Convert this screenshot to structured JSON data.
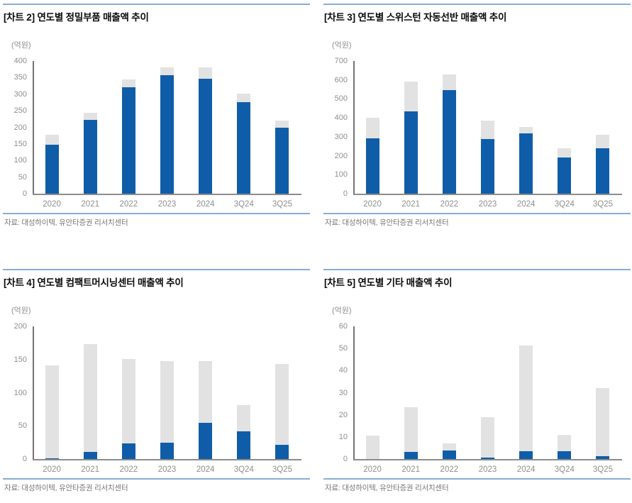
{
  "colors": {
    "bar_blue": "#0f5da8",
    "bar_gray": "#e2e2e2",
    "accent_rule": "#86aed7",
    "axis_line": "#737373",
    "tick_label": "#8e8e8e"
  },
  "chart_data": [
    {
      "id": "chart-2",
      "type": "bar",
      "stacked": true,
      "title": "[차트 2] 연도별 정밀부품 매출액 추이",
      "unit": "(억원)",
      "source": "자료: 대성하이텍, 유안타증권 리서치센터",
      "categories": [
        "2020",
        "2021",
        "2022",
        "2023",
        "2024",
        "3Q24",
        "3Q25"
      ],
      "series": [
        {
          "name": "blue-segment",
          "color": "#0f5da8",
          "values": [
            148,
            223,
            320,
            357,
            347,
            275,
            198
          ]
        },
        {
          "name": "gray-segment",
          "color": "#e2e2e2",
          "values": [
            29,
            21,
            24,
            23,
            33,
            27,
            23
          ]
        }
      ],
      "totals": [
        177,
        244,
        344,
        380,
        380,
        302,
        221
      ],
      "ylim": [
        0,
        400
      ],
      "ytick_step": 50,
      "grid": false,
      "legend": "none"
    },
    {
      "id": "chart-3",
      "type": "bar",
      "stacked": true,
      "title": "[차트 3] 연도별 스위스턴 자동선반 매출액 추이",
      "unit": "(억원)",
      "source": "자료: 대성하이텍, 유안타증권 리서치센터",
      "categories": [
        "2020",
        "2021",
        "2022",
        "2023",
        "2024",
        "3Q24",
        "3Q25"
      ],
      "series": [
        {
          "name": "blue-segment",
          "color": "#0f5da8",
          "values": [
            292,
            433,
            546,
            287,
            320,
            191,
            239
          ]
        },
        {
          "name": "gray-segment",
          "color": "#e2e2e2",
          "values": [
            108,
            157,
            82,
            97,
            32,
            49,
            70
          ]
        }
      ],
      "totals": [
        400,
        590,
        628,
        384,
        352,
        240,
        309
      ],
      "ylim": [
        0,
        700
      ],
      "ytick_step": 100,
      "grid": false,
      "legend": "none"
    },
    {
      "id": "chart-4",
      "type": "bar",
      "stacked": true,
      "title": "[차트 4] 연도별 컴팩트머시닝센터 매출액 추이",
      "unit": "(억원)",
      "source": "자료: 대성하이텍, 유안타증권 리서치센터",
      "categories": [
        "2020",
        "2021",
        "2022",
        "2023",
        "2024",
        "3Q24",
        "3Q25"
      ],
      "series": [
        {
          "name": "blue-segment",
          "color": "#0f5da8",
          "values": [
            1,
            11,
            24,
            25,
            55,
            42,
            21
          ]
        },
        {
          "name": "gray-segment",
          "color": "#e2e2e2",
          "values": [
            140,
            162,
            127,
            123,
            93,
            39,
            122
          ]
        }
      ],
      "totals": [
        141,
        173,
        151,
        148,
        148,
        81,
        143
      ],
      "ylim": [
        0,
        200
      ],
      "ytick_step": 50,
      "grid": false,
      "legend": "none"
    },
    {
      "id": "chart-5",
      "type": "bar",
      "stacked": true,
      "title": "[차트 5] 연도별 기타 매출액 추이",
      "unit": "(억원)",
      "source": "자료: 대성하이텍, 유안타증권 리서치센터",
      "categories": [
        "2020",
        "2021",
        "2022",
        "2023",
        "2024",
        "3Q24",
        "3Q25"
      ],
      "series": [
        {
          "name": "blue-segment",
          "color": "#0f5da8",
          "values": [
            0,
            3.3,
            3.8,
            0.5,
            3.5,
            3.5,
            1.2
          ]
        },
        {
          "name": "gray-segment",
          "color": "#e2e2e2",
          "values": [
            10.5,
            20.2,
            3.2,
            18.5,
            48,
            7.5,
            30.8
          ]
        }
      ],
      "totals": [
        10.5,
        23.5,
        7,
        19,
        51.5,
        11,
        32
      ],
      "ylim": [
        0,
        60
      ],
      "ytick_step": 10,
      "grid": false,
      "legend": "none"
    }
  ]
}
